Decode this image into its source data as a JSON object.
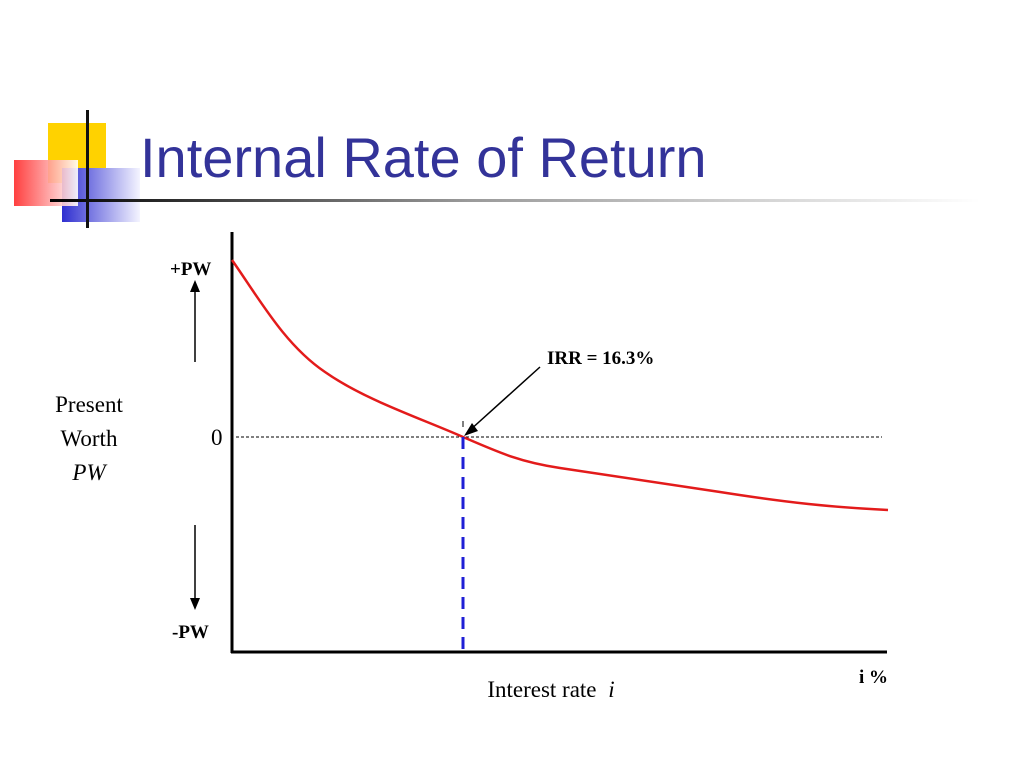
{
  "slide": {
    "title": "Internal Rate of Return",
    "title_color": "#333399"
  },
  "chart_data": {
    "type": "line",
    "xlabel": "Interest rate",
    "xlabel_var": "i",
    "x_axis_end_label": "i %",
    "ylabel_lines": [
      "Present",
      "Worth"
    ],
    "ylabel_var": "PW",
    "y_top_label": "+PW",
    "y_zero_label": "0",
    "y_bottom_label": "-PW",
    "annotation": "IRR = 16.3%",
    "irr_percent": 16.3,
    "curve_color": "#e31b1b",
    "marker_color": "#1f1fd6"
  }
}
